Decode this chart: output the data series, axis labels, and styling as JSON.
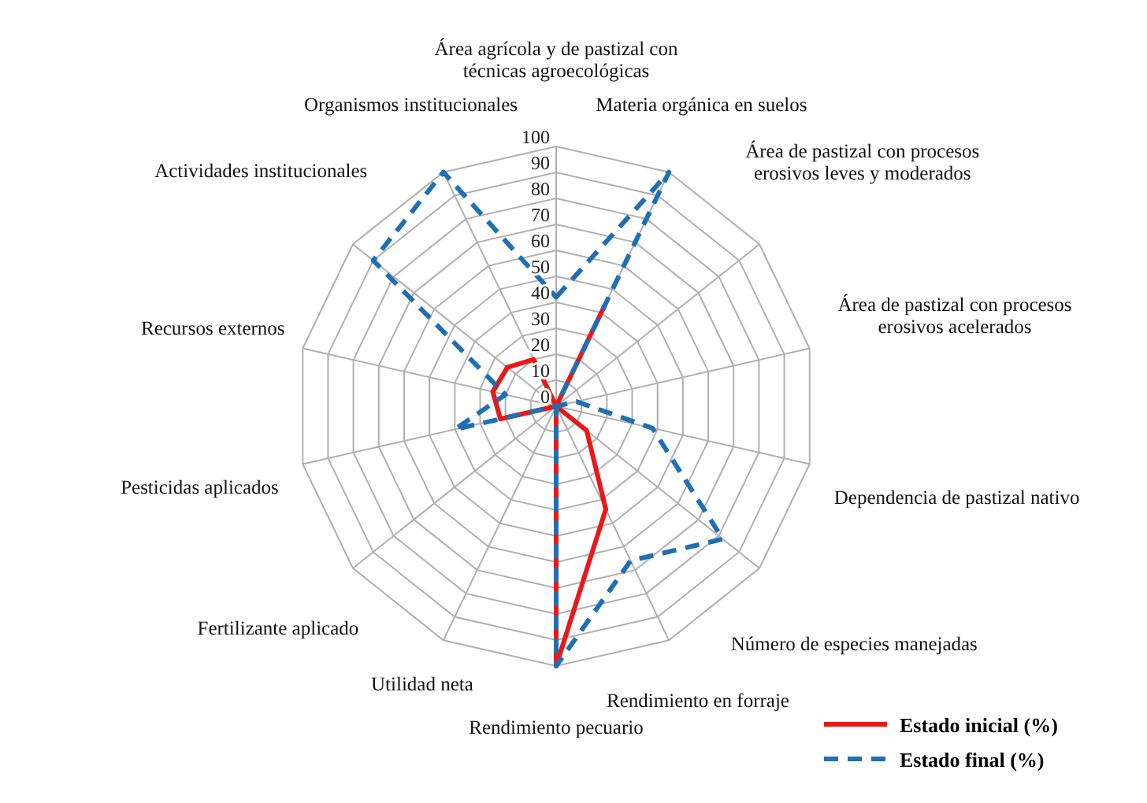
{
  "chart_data": {
    "type": "radar",
    "categories": [
      "Área agrícola  y de pastizal con\ntécnicas agroecológicas",
      "Materia orgánica en suelos",
      "Área de pastizal con procesos\nerosivos leves y moderados",
      "Área de pastizal con procesos\nerosivos acelerados",
      "Dependencia de pastizal nativo",
      "Número de especies manejadas",
      "Rendimiento en forraje",
      "Rendimiento pecuario",
      "Utilidad neta",
      "Fertilizante aplicado",
      "Pesticidas aplicados",
      "Recursos externos",
      "Actividades institucionales",
      "Organismos institucionales"
    ],
    "series": [
      {
        "name": "Estado inicial (%)",
        "color": "#e8191a",
        "line_style": "solid",
        "values": [
          0,
          43,
          0,
          0,
          0,
          15,
          44,
          100,
          0,
          0,
          22,
          25,
          24,
          20
        ]
      },
      {
        "name": "Estado final (%)",
        "color": "#1f6fb4",
        "line_style": "dashed",
        "values": [
          42,
          100,
          0,
          8,
          38,
          82,
          66,
          100,
          0,
          0,
          40,
          20,
          90,
          100
        ]
      }
    ],
    "ylim": [
      0,
      100
    ],
    "yticks": [
      0,
      10,
      20,
      30,
      40,
      50,
      60,
      70,
      80,
      90,
      100
    ],
    "grid": true,
    "legend": "bottom right",
    "marker": "none"
  }
}
